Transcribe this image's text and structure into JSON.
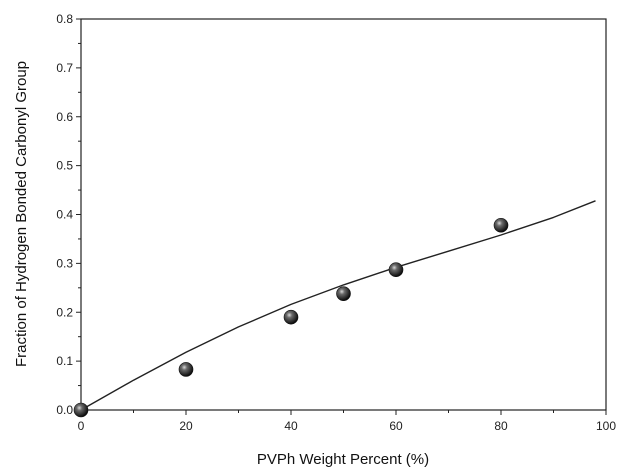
{
  "chart_data": {
    "type": "scatter",
    "xlabel": "PVPh Weight Percent (%)",
    "ylabel": "Fraction of Hydrogen Bonded Carbonyl Group",
    "xlim": [
      0,
      100
    ],
    "ylim": [
      0.0,
      0.8
    ],
    "xticks": [
      "0",
      "20",
      "40",
      "60",
      "80",
      "100"
    ],
    "yticks": [
      "0.0",
      "0.1",
      "0.2",
      "0.3",
      "0.4",
      "0.5",
      "0.6",
      "0.7",
      "0.8"
    ],
    "grid": false,
    "legend": "none",
    "series": [
      {
        "kind": "points",
        "x": [
          0,
          20,
          40,
          50,
          60,
          80
        ],
        "y": [
          0.0,
          0.083,
          0.19,
          0.238,
          0.287,
          0.378
        ]
      },
      {
        "kind": "fit-line",
        "x": [
          0,
          10,
          20,
          30,
          40,
          50,
          60,
          70,
          80,
          90,
          98
        ],
        "y": [
          0.0,
          0.061,
          0.118,
          0.17,
          0.216,
          0.256,
          0.292,
          0.325,
          0.358,
          0.394,
          0.428
        ]
      }
    ],
    "colors": {
      "axis": "#222222",
      "line": "#222222",
      "marker": "#111111"
    }
  }
}
